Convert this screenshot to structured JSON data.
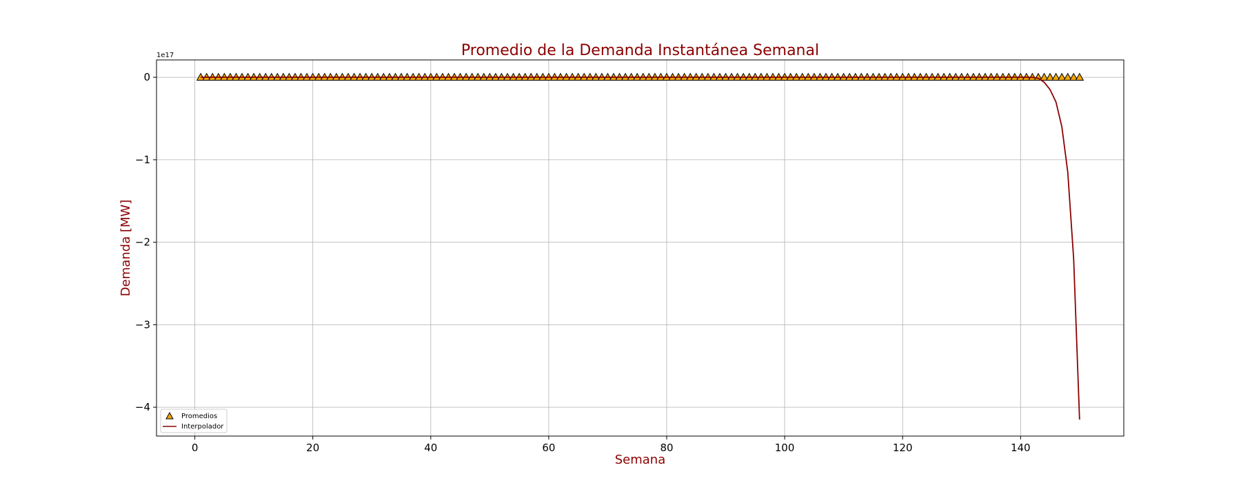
{
  "chart_data": {
    "type": "line",
    "title": "Promedio de la Demanda Instantánea Semanal",
    "xlabel": "Semana",
    "ylabel": "Demanda [MW]",
    "y_offset_label": "1e17",
    "y_scale": 1e+17,
    "xlim": [
      -6.5,
      157.5
    ],
    "ylim": [
      -4.35,
      0.21
    ],
    "x_ticks": [
      0,
      20,
      40,
      60,
      80,
      100,
      120,
      140
    ],
    "y_ticks": [
      0,
      -1,
      -2,
      -3,
      -4
    ],
    "x_tick_labels": [
      "0",
      "20",
      "40",
      "60",
      "80",
      "100",
      "120",
      "140"
    ],
    "y_tick_labels": [
      "0",
      "−1",
      "−2",
      "−3",
      "−4"
    ],
    "grid": true,
    "legend_position": "lower-left",
    "colors": {
      "title": "#8b0000",
      "axis_label": "#8b0000",
      "line": "#8b0000",
      "marker_fill": "#f0a500",
      "marker_edge": "#000000",
      "grid": "#b0b0b0"
    },
    "series": [
      {
        "name": "Promedios",
        "kind": "marker-triangle",
        "x_start": 1,
        "x_end": 150,
        "y_constant": 0
      },
      {
        "name": "Interpolador",
        "kind": "line",
        "x": [
          1,
          140,
          141,
          142,
          143,
          144,
          145,
          146,
          147,
          148,
          149,
          150
        ],
        "y": [
          0,
          0,
          -0.0002,
          -0.0015,
          -0.012,
          -0.06,
          -0.15,
          -0.3,
          -0.6,
          -1.15,
          -2.2,
          -4.15
        ]
      }
    ]
  }
}
